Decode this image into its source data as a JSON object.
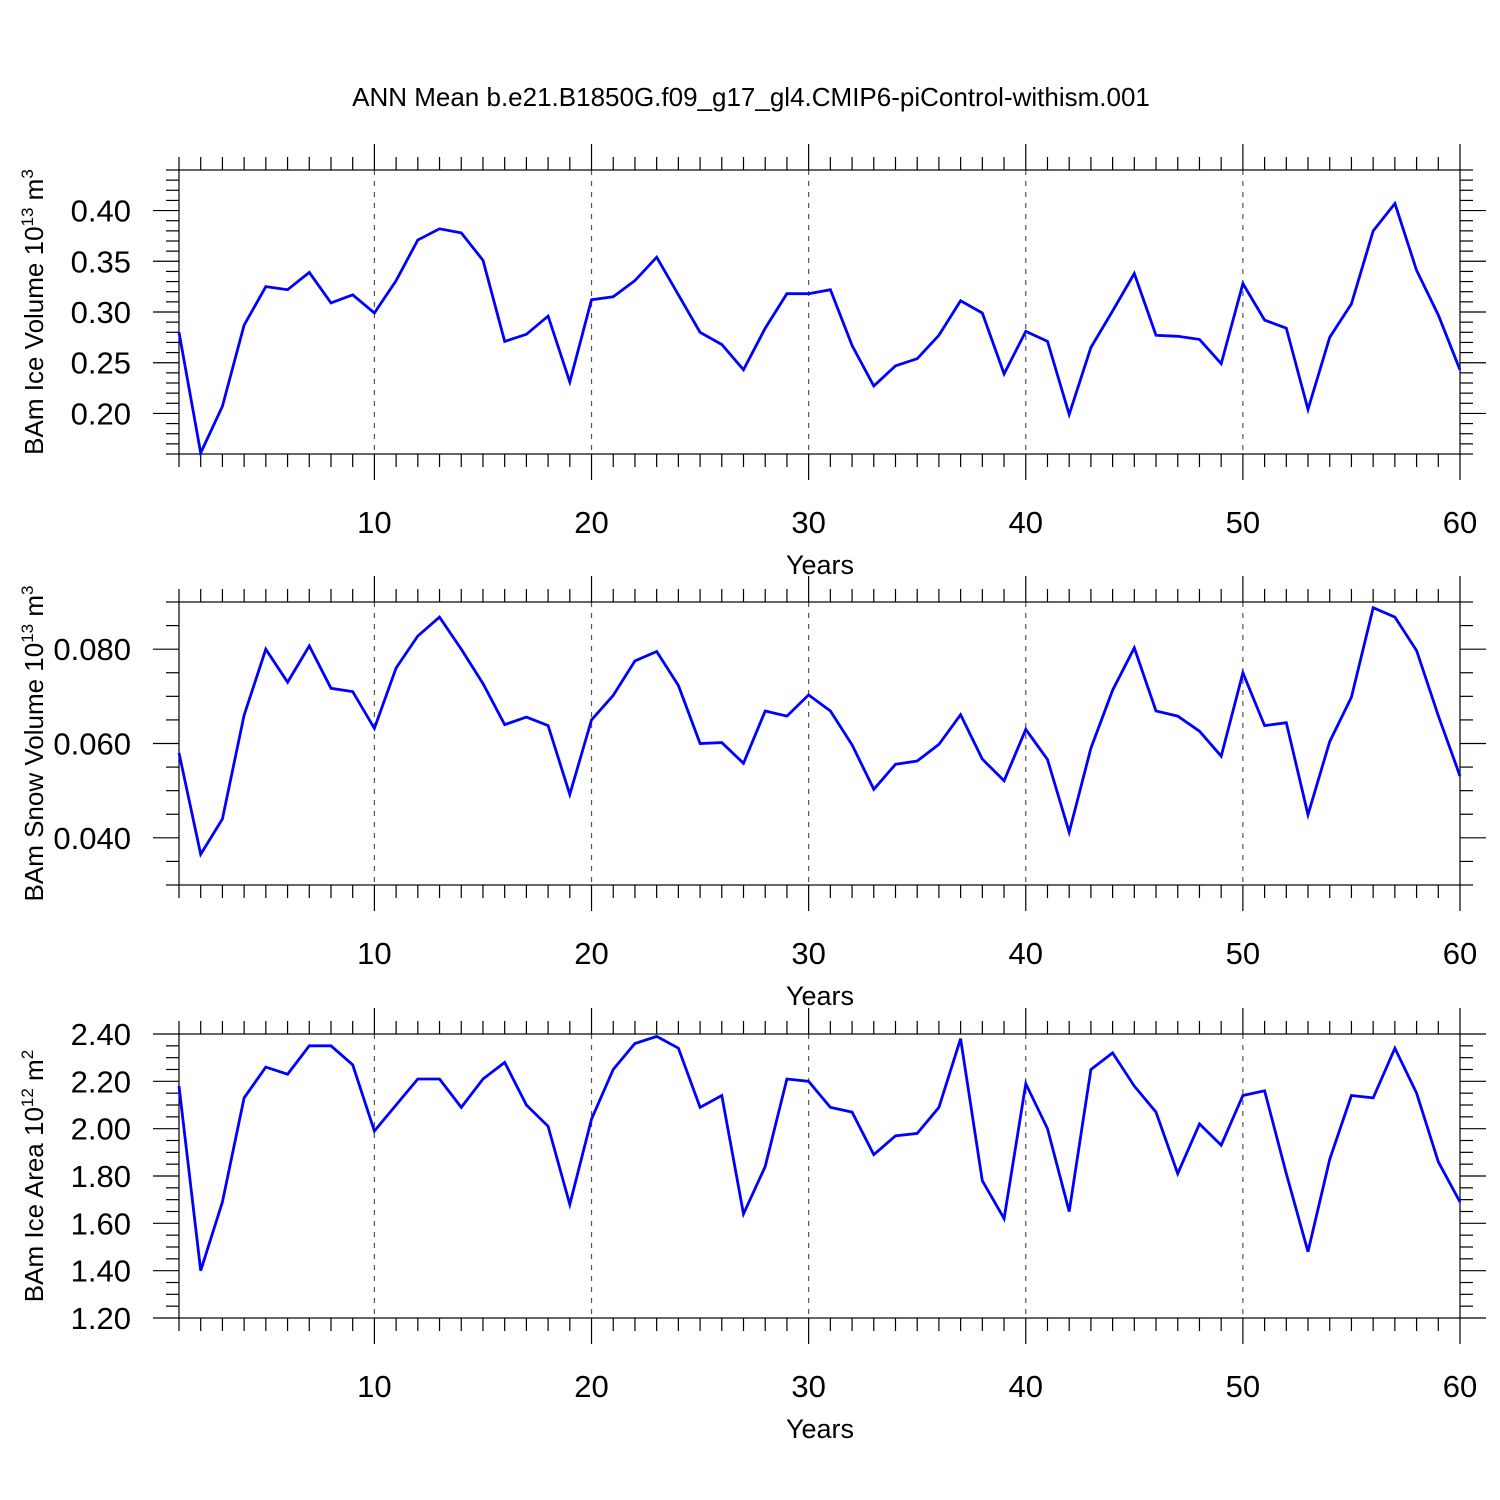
{
  "title": "ANN Mean b.e21.B1850G.f09_g17_gl4.CMIP6-piControl-withism.001",
  "chart_data": [
    {
      "type": "line",
      "title": "ANN Mean b.e21.B1850G.f09_g17_gl4.CMIP6-piControl-withism.001",
      "xlabel": "Years",
      "ylabel": {
        "base": "BAm Ice Volume 10",
        "exp": "13",
        "unit": " m",
        "unit_exp": "3"
      },
      "xlim": [
        1,
        60
      ],
      "ylim": [
        0.16,
        0.44
      ],
      "xticks": [
        10,
        20,
        30,
        40,
        50,
        60
      ],
      "yticks": [
        0.2,
        0.25,
        0.3,
        0.35,
        0.4
      ],
      "ytick_labels": [
        "0.20",
        "0.25",
        "0.30",
        "0.35",
        "0.40"
      ],
      "yminor_step": 0.01,
      "grid": "vertical dashed at major x ticks",
      "line_color": "#0000ff",
      "x": [
        1,
        2,
        3,
        4,
        5,
        6,
        7,
        8,
        9,
        10,
        11,
        12,
        13,
        14,
        15,
        16,
        17,
        18,
        19,
        20,
        21,
        22,
        23,
        24,
        25,
        26,
        27,
        28,
        29,
        30,
        31,
        32,
        33,
        34,
        35,
        36,
        37,
        38,
        39,
        40,
        41,
        42,
        43,
        44,
        45,
        46,
        47,
        48,
        49,
        50,
        51,
        52,
        53,
        54,
        55,
        56,
        57,
        58,
        59,
        60
      ],
      "values": [
        0.28,
        0.161,
        0.207,
        0.287,
        0.325,
        0.322,
        0.339,
        0.309,
        0.317,
        0.299,
        0.331,
        0.371,
        0.382,
        0.378,
        0.351,
        0.271,
        0.278,
        0.296,
        0.231,
        0.312,
        0.315,
        0.331,
        0.354,
        0.317,
        0.28,
        0.268,
        0.243,
        0.284,
        0.318,
        0.318,
        0.322,
        0.267,
        0.227,
        0.247,
        0.254,
        0.277,
        0.311,
        0.299,
        0.239,
        0.281,
        0.271,
        0.199,
        0.265,
        0.301,
        0.338,
        0.277,
        0.276,
        0.273,
        0.249,
        0.328,
        0.292,
        0.284,
        0.204,
        0.275,
        0.308,
        0.38,
        0.407,
        0.341,
        0.297,
        0.243
      ]
    },
    {
      "type": "line",
      "xlabel": "Years",
      "ylabel": {
        "base": "BAm Snow Volume 10",
        "exp": "13",
        "unit": " m",
        "unit_exp": "3"
      },
      "xlim": [
        1,
        60
      ],
      "ylim": [
        0.03,
        0.09
      ],
      "xticks": [
        10,
        20,
        30,
        40,
        50,
        60
      ],
      "yticks": [
        0.04,
        0.06,
        0.08
      ],
      "ytick_labels": [
        "0.040",
        "0.060",
        "0.080"
      ],
      "yminor_step": 0.005,
      "grid": "vertical dashed at major x ticks",
      "line_color": "#0000ff",
      "x": [
        1,
        2,
        3,
        4,
        5,
        6,
        7,
        8,
        9,
        10,
        11,
        12,
        13,
        14,
        15,
        16,
        17,
        18,
        19,
        20,
        21,
        22,
        23,
        24,
        25,
        26,
        27,
        28,
        29,
        30,
        31,
        32,
        33,
        34,
        35,
        36,
        37,
        38,
        39,
        40,
        41,
        42,
        43,
        44,
        45,
        46,
        47,
        48,
        49,
        50,
        51,
        52,
        53,
        54,
        55,
        56,
        57,
        58,
        59,
        60
      ],
      "values": [
        0.058,
        0.0365,
        0.044,
        0.066,
        0.08,
        0.073,
        0.0807,
        0.0717,
        0.071,
        0.0632,
        0.076,
        0.0828,
        0.0868,
        0.08,
        0.0727,
        0.064,
        0.0656,
        0.0638,
        0.0492,
        0.065,
        0.0702,
        0.0775,
        0.0795,
        0.0723,
        0.06,
        0.0602,
        0.0558,
        0.0669,
        0.0658,
        0.0703,
        0.0669,
        0.0597,
        0.0503,
        0.0556,
        0.0563,
        0.0598,
        0.0661,
        0.0567,
        0.0521,
        0.063,
        0.0566,
        0.0412,
        0.059,
        0.0713,
        0.0803,
        0.0669,
        0.0658,
        0.0626,
        0.0573,
        0.075,
        0.0638,
        0.0644,
        0.0449,
        0.0604,
        0.0698,
        0.0888,
        0.0868,
        0.0797,
        0.0659,
        0.0531
      ]
    },
    {
      "type": "line",
      "xlabel": "Years",
      "ylabel": {
        "base": "BAm Ice Area 10",
        "exp": "12",
        "unit": " m",
        "unit_exp": "2"
      },
      "xlim": [
        1,
        60
      ],
      "ylim": [
        1.2,
        2.4
      ],
      "xticks": [
        10,
        20,
        30,
        40,
        50,
        60
      ],
      "yticks": [
        1.2,
        1.4,
        1.6,
        1.8,
        2.0,
        2.2,
        2.4
      ],
      "ytick_labels": [
        "1.20",
        "1.40",
        "1.60",
        "1.80",
        "2.00",
        "2.20",
        "2.40"
      ],
      "yminor_step": 0.05,
      "grid": "vertical dashed at major x ticks",
      "line_color": "#0000ff",
      "x": [
        1,
        2,
        3,
        4,
        5,
        6,
        7,
        8,
        9,
        10,
        11,
        12,
        13,
        14,
        15,
        16,
        17,
        18,
        19,
        20,
        21,
        22,
        23,
        24,
        25,
        26,
        27,
        28,
        29,
        30,
        31,
        32,
        33,
        34,
        35,
        36,
        37,
        38,
        39,
        40,
        41,
        42,
        43,
        44,
        45,
        46,
        47,
        48,
        49,
        50,
        51,
        52,
        53,
        54,
        55,
        56,
        57,
        58,
        59,
        60
      ],
      "values": [
        2.18,
        1.4,
        1.69,
        2.13,
        2.26,
        2.23,
        2.35,
        2.35,
        2.27,
        1.99,
        2.1,
        2.21,
        2.21,
        2.09,
        2.21,
        2.28,
        2.1,
        2.01,
        1.68,
        2.04,
        2.25,
        2.36,
        2.39,
        2.34,
        2.09,
        2.14,
        1.64,
        1.84,
        2.21,
        2.2,
        2.09,
        2.07,
        1.89,
        1.97,
        1.98,
        2.09,
        2.38,
        1.78,
        1.62,
        2.19,
        2.0,
        1.65,
        2.25,
        2.32,
        2.18,
        2.07,
        1.81,
        2.02,
        1.93,
        2.14,
        2.16,
        1.81,
        1.48,
        1.87,
        2.14,
        2.13,
        2.34,
        2.15,
        1.86,
        1.69
      ]
    }
  ]
}
